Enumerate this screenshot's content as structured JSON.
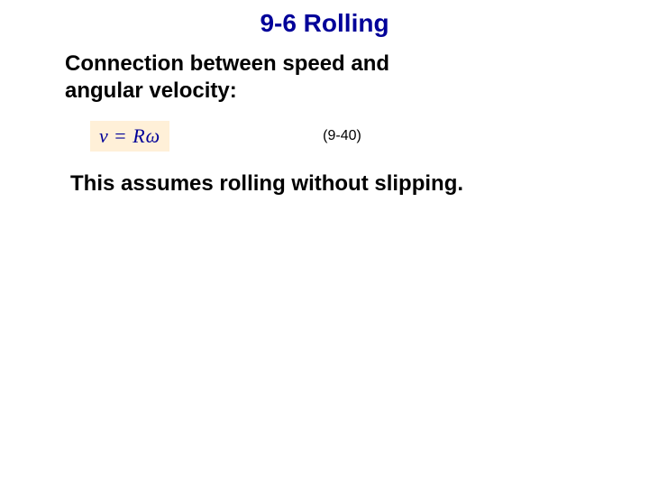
{
  "slide": {
    "title": "9-6 Rolling",
    "subtitle_line1": "Connection between speed and",
    "subtitle_line2": "angular velocity:",
    "equation": {
      "lhs": "v",
      "eq": " = ",
      "rhs": "Rω",
      "number": "(9-40)",
      "box_bg": "#fff0d8",
      "text_color": "#000099"
    },
    "body": "This assumes rolling without slipping."
  },
  "style": {
    "title_color": "#000099",
    "title_fontsize": 28,
    "subtitle_fontsize": 24,
    "body_fontsize": 24,
    "eq_fontsize": 22,
    "eq_number_fontsize": 16,
    "background": "#ffffff"
  }
}
